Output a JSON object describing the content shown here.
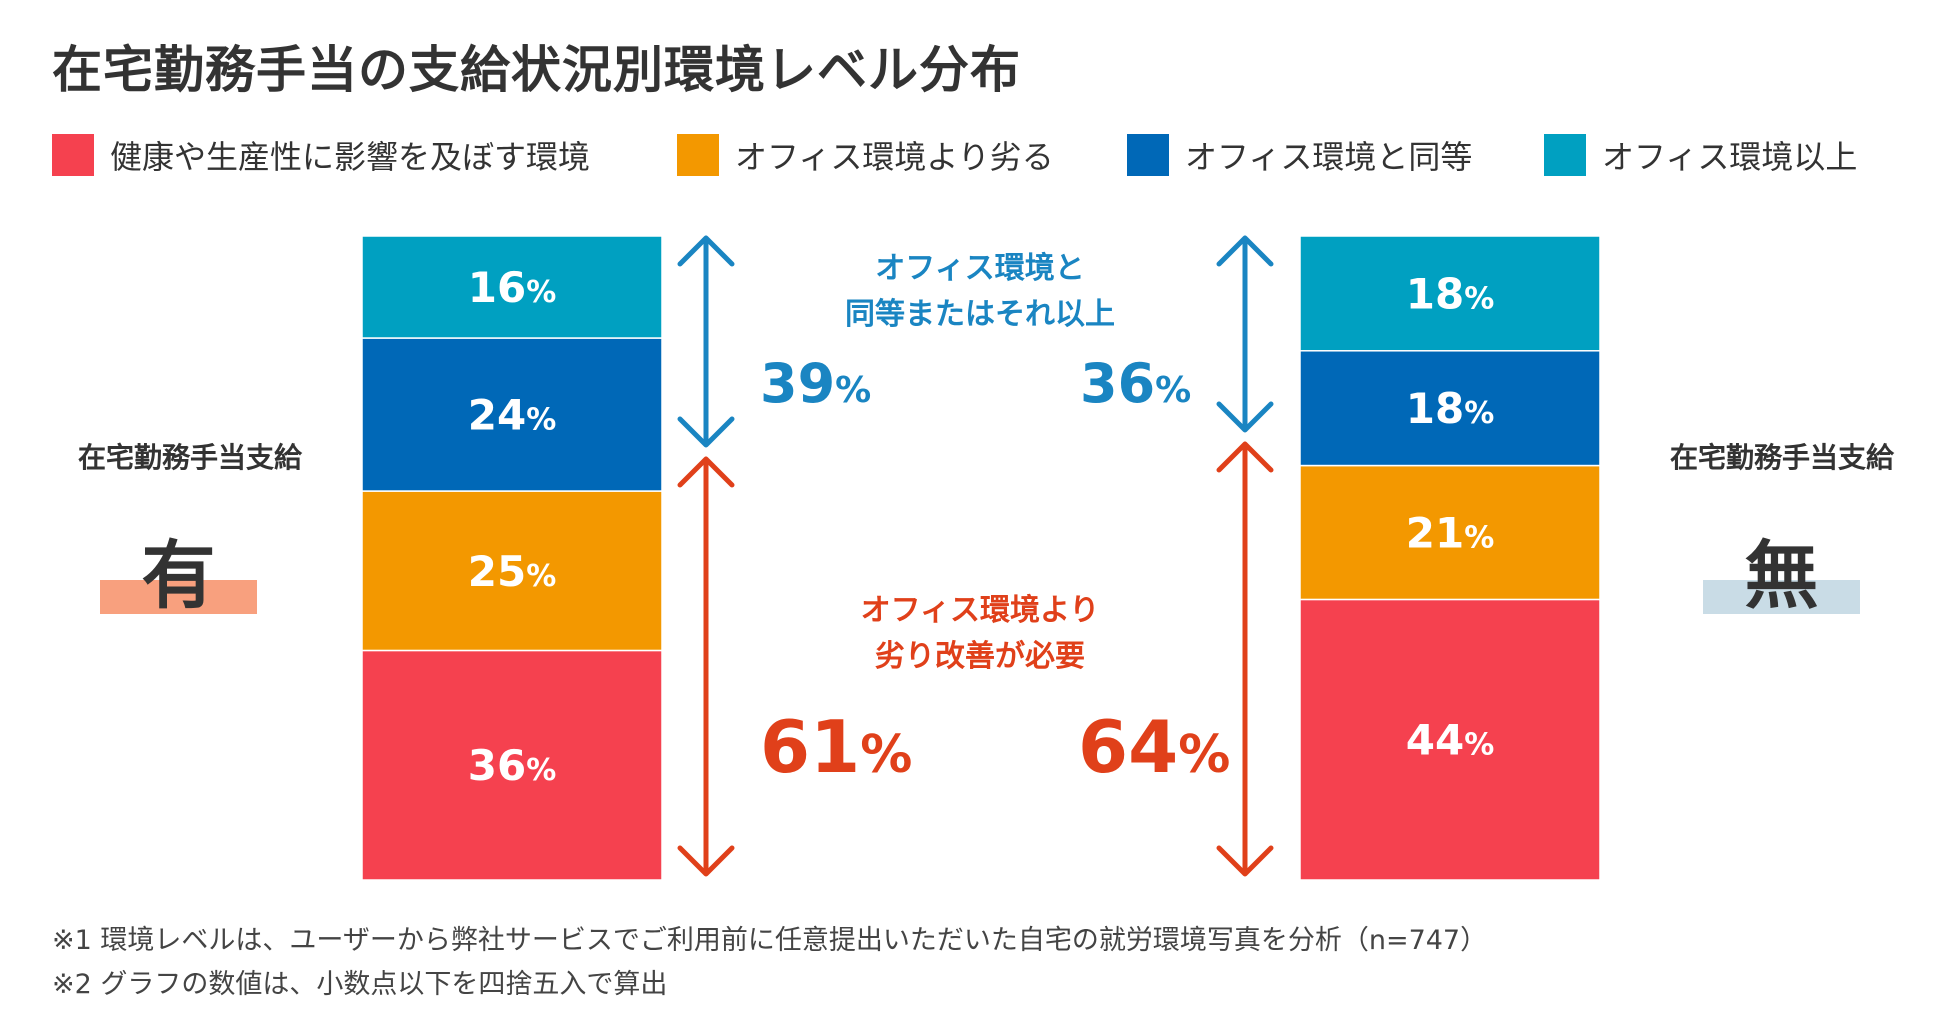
{
  "title": "在宅勤務手当の支給状況別環境レベル分布",
  "legend": [
    {
      "label": "健康や生産性に影響を及ぼす環境",
      "color": "#F5414F"
    },
    {
      "label": "オフィス環境より劣る",
      "color": "#F39800"
    },
    {
      "label": "オフィス環境と同等",
      "color": "#0068B7"
    },
    {
      "label": "オフィス環境以上",
      "color": "#00A0C1"
    }
  ],
  "groups": {
    "left": {
      "caption": "在宅勤務手当支給",
      "mark": "有",
      "mark_color": "#F8A07E"
    },
    "right": {
      "caption": "在宅勤務手当支給",
      "mark": "無",
      "mark_color": "#C9DCE6"
    }
  },
  "callouts": {
    "upper": {
      "line1": "オフィス環境と",
      "line2": "同等またはそれ以上",
      "color": "#1A85C2",
      "left_total": "39",
      "right_total": "36"
    },
    "lower": {
      "line1": "オフィス環境より",
      "line2": "劣り改善が必要",
      "color": "#E0401A",
      "left_total": "61",
      "right_total": "64"
    },
    "percent_sign": "%"
  },
  "chart_data": {
    "type": "bar",
    "stacked": true,
    "normalized": true,
    "title": "在宅勤務手当の支給状況別環境レベル分布",
    "categories": [
      "有",
      "無"
    ],
    "category_caption": "在宅勤務手当支給",
    "series": [
      {
        "name": "健康や生産性に影響を及ぼす環境",
        "values": [
          36,
          44
        ],
        "color": "#F5414F"
      },
      {
        "name": "オフィス環境より劣る",
        "values": [
          25,
          21
        ],
        "color": "#F39800"
      },
      {
        "name": "オフィス環境と同等",
        "values": [
          24,
          18
        ],
        "color": "#0068B7"
      },
      {
        "name": "オフィス環境以上",
        "values": [
          16,
          18
        ],
        "color": "#00A0C1"
      }
    ],
    "value_suffix": "%",
    "group_totals": {
      "オフィス環境と同等またはそれ以上": [
        39,
        36
      ],
      "オフィス環境より劣り改善が必要": [
        61,
        64
      ]
    },
    "ylim": [
      0,
      100
    ],
    "legend_position": "top"
  },
  "notes": [
    "※1 環境レベルは、ユーザーから弊社サービスでご利用前に任意提出いただいた自宅の就労環境写真を分析（n=747）",
    "※2 グラフの数値は、小数点以下を四捨五入で算出"
  ]
}
